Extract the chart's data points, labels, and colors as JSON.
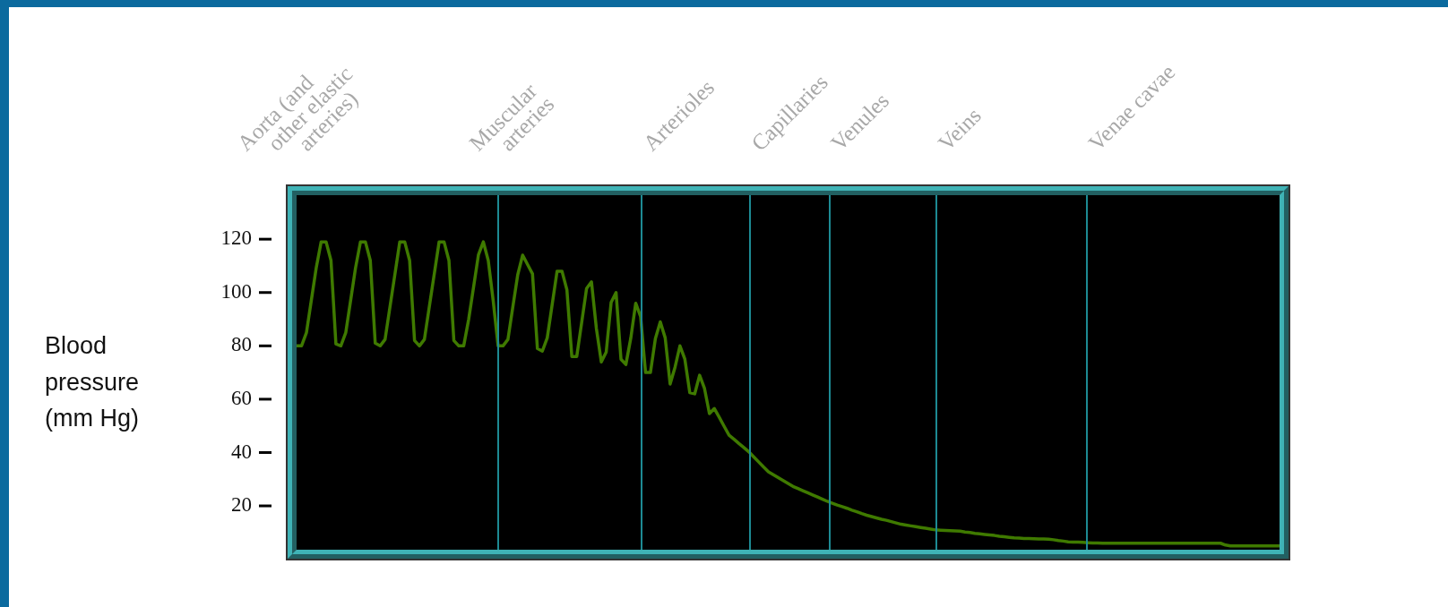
{
  "chart_data": {
    "type": "line",
    "ylabel": "Blood pressure (mm Hg)",
    "ylim": [
      3.5,
      136.5
    ],
    "yticks": [
      20,
      40,
      60,
      80,
      100,
      120
    ],
    "tick_labels": "y",
    "legend": false,
    "marker": "none",
    "line_style": "solid",
    "annotations": [
      "Aorta (and\nother elastic\narteries)",
      "Muscular\narteries",
      "Arterioles",
      "Capillaries",
      "Venules",
      "Veins",
      "Venae cavae"
    ],
    "categories": [
      null,
      null,
      null,
      null,
      null,
      null,
      null,
      null,
      null,
      null,
      null,
      null,
      null,
      null,
      null,
      null,
      null,
      null,
      null,
      null,
      null,
      null,
      null,
      null,
      null,
      null,
      null,
      null,
      null,
      null,
      null,
      null,
      null,
      null,
      null,
      null,
      null,
      null,
      null,
      null,
      null,
      null,
      null,
      null,
      null,
      null,
      null,
      null,
      null,
      null,
      null,
      null,
      null,
      null,
      null,
      null,
      null,
      null,
      null,
      null,
      null,
      null,
      null,
      null,
      null,
      null,
      null,
      null,
      null,
      null,
      null,
      null,
      null,
      null,
      null,
      null,
      null,
      null,
      null,
      null,
      null,
      null,
      null,
      null,
      null,
      null,
      null,
      null,
      null,
      null,
      null,
      null,
      null,
      null,
      null,
      null,
      null,
      null,
      null,
      null,
      null,
      null,
      null,
      null,
      null,
      null,
      null,
      null,
      null,
      null,
      null,
      null,
      null,
      null,
      null,
      null,
      null,
      null,
      null,
      null,
      null,
      null,
      null,
      null,
      null,
      null,
      null,
      null,
      null,
      null,
      null,
      null,
      null,
      null,
      null,
      null,
      null,
      null,
      null,
      null,
      null,
      null,
      null,
      null,
      null,
      null,
      null,
      null,
      null,
      null,
      null,
      null,
      null,
      null,
      null,
      null,
      null,
      null,
      null,
      null,
      null,
      null,
      null,
      null,
      null,
      null,
      null,
      null,
      null,
      null,
      null,
      null,
      null,
      null,
      null,
      null,
      null,
      null,
      null,
      null,
      null,
      null,
      null,
      null,
      null,
      null,
      null,
      null,
      null,
      null,
      null,
      null,
      null,
      null,
      null,
      null,
      null,
      null,
      null,
      null,
      null
    ],
    "series": [
      {
        "color": "#3f7a00",
        "values": [
          80,
          80,
          84.9,
          97.1,
          109.3,
          119,
          119,
          112,
          80.7,
          80,
          84.9,
          97.1,
          109.3,
          119,
          119,
          112,
          81,
          80,
          82.4,
          94.6,
          106.8,
          119,
          119,
          112,
          82,
          80,
          82.4,
          94.6,
          106.8,
          119,
          119,
          112,
          82,
          80,
          80,
          89.8,
          101.9,
          114.1,
          119,
          112,
          97,
          80,
          80,
          82.4,
          94.6,
          106.7,
          114,
          110.5,
          107,
          79,
          78,
          83,
          95.5,
          108,
          108,
          101,
          76,
          76,
          88.7,
          101.5,
          104,
          86.5,
          74,
          77.7,
          96.3,
          100,
          75,
          73,
          82.9,
          96,
          91,
          70,
          70,
          82.7,
          89,
          83,
          65.7,
          72,
          80,
          75,
          62.5,
          62,
          69,
          64,
          54.6,
          56.5,
          53.2,
          49.8,
          46.5,
          45.0,
          43.4,
          41.9,
          40.3,
          38.4,
          36.5,
          34.6,
          32.8,
          31.7,
          30.6,
          29.5,
          28.4,
          27.3,
          26.5,
          25.7,
          24.9,
          24.1,
          23.3,
          22.5,
          21.7,
          21.0,
          20.3,
          19.7,
          19.1,
          18.4,
          17.8,
          17.1,
          16.5,
          16.0,
          15.5,
          15.0,
          14.6,
          14.1,
          13.6,
          13.1,
          12.8,
          12.5,
          12.2,
          11.9,
          11.6,
          11.3,
          11,
          10.9,
          10.8,
          10.7,
          10.6,
          10.5,
          10.2,
          10.0,
          9.7,
          9.5,
          9.3,
          9.1,
          8.9,
          8.6,
          8.4,
          8.2,
          8.0,
          7.9,
          7.8,
          7.8,
          7.7,
          7.6,
          7.6,
          7.5,
          7.3,
          7.0,
          6.8,
          6.5,
          6.4,
          6.4,
          6.3,
          6.2,
          6.1,
          6.1,
          6,
          6,
          6,
          6,
          6,
          6,
          6,
          6,
          6,
          6,
          6,
          6,
          6,
          6,
          6,
          6,
          6,
          6,
          6,
          6,
          6,
          6,
          6,
          6,
          6,
          5.3,
          5,
          5,
          5,
          5,
          5,
          5,
          5,
          5,
          5,
          5,
          5
        ]
      }
    ]
  }
}
